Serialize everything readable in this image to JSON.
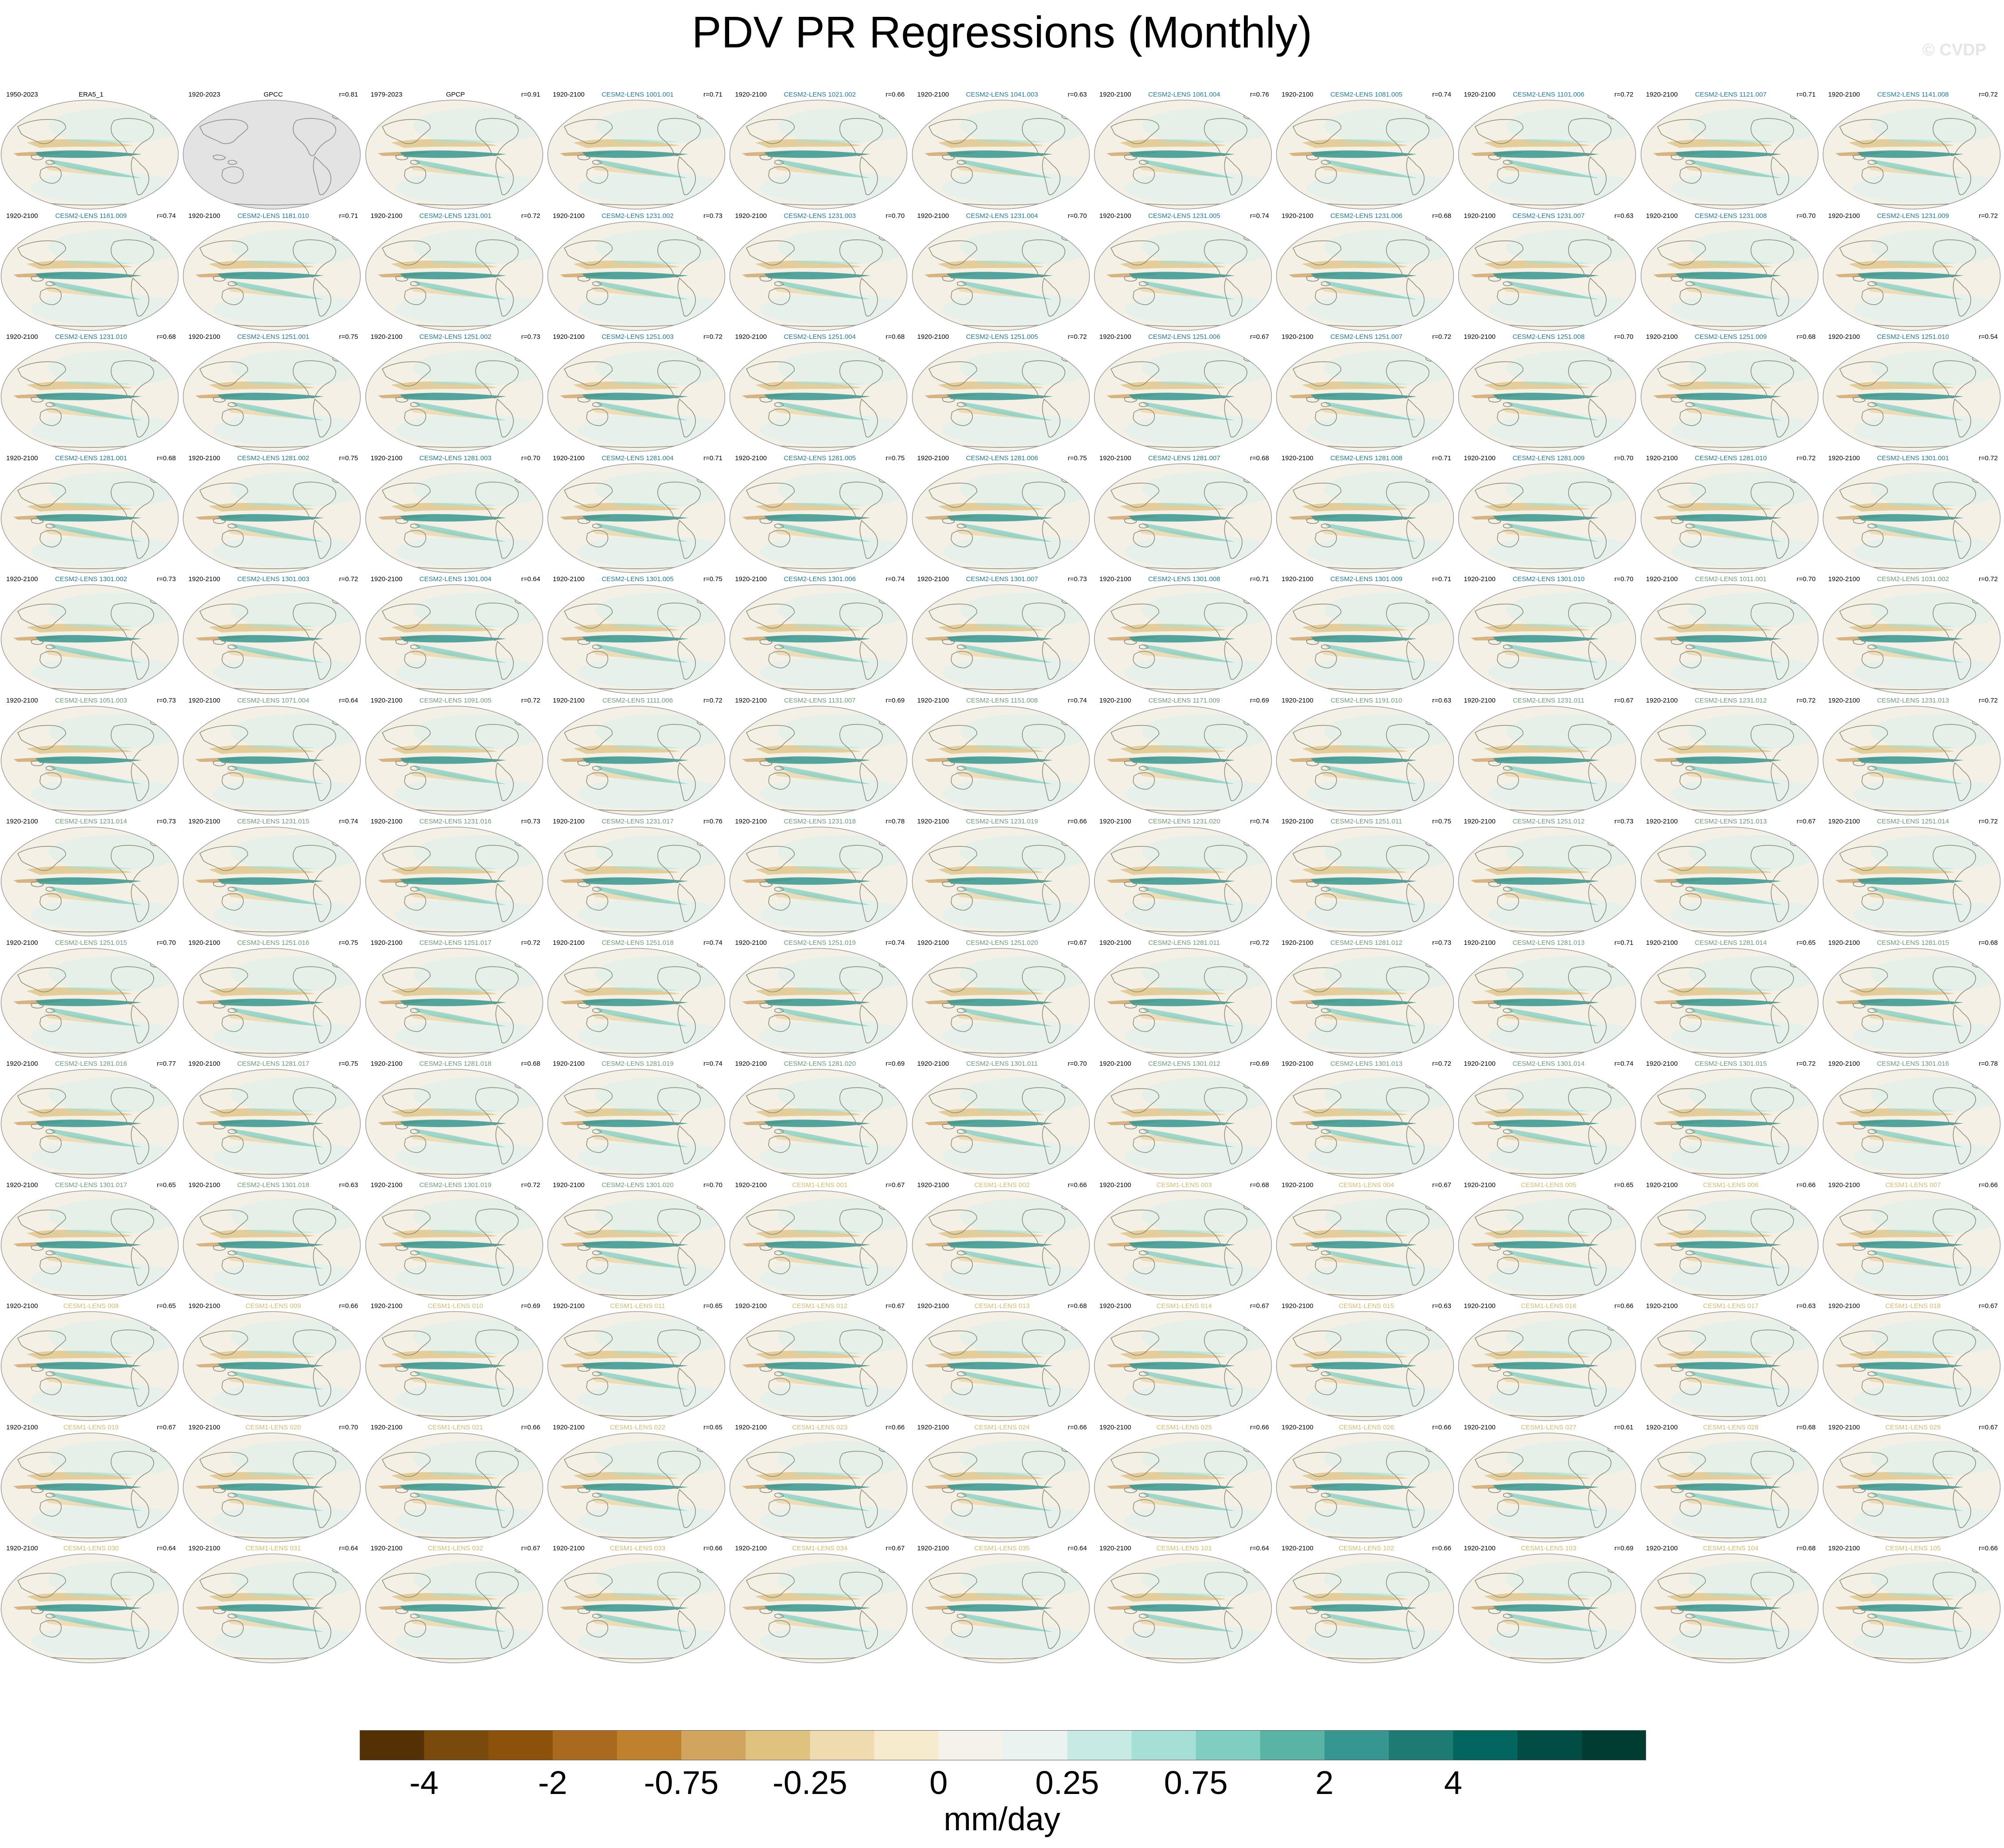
{
  "title": "PDV PR Regressions (Monthly)",
  "watermark": "© CVDP",
  "colors": {
    "cesm2_a": "#1f7a99",
    "cesm2_b": "#6b9a76",
    "cesm1": "#d7b96a",
    "obs": "#000000"
  },
  "palette": [
    "#543005",
    "#7a4a0c",
    "#8c510a",
    "#a9691f",
    "#bf812d",
    "#d2a55e",
    "#dfc27d",
    "#eedcb0",
    "#f6ebcd",
    "#f5f2ec",
    "#ebf3f1",
    "#c7eae5",
    "#a6dfd5",
    "#80cdc1",
    "#5ab4a6",
    "#35978f",
    "#1d7b73",
    "#01665e",
    "#014d45",
    "#003c30"
  ],
  "colorbar": {
    "ticks": [
      "-4",
      "-2",
      "-0.75",
      "-0.25",
      "0",
      "0.25",
      "0.75",
      "2",
      "4"
    ],
    "units": "mm/day"
  },
  "panels": [
    {
      "name": "ERA5_1",
      "years": "1950-2023",
      "r": "",
      "group": "obs"
    },
    {
      "name": "GPCC",
      "years": "1920-2023",
      "r": "r=0.81",
      "group": "obs",
      "missing": true
    },
    {
      "name": "GPCP",
      "years": "1979-2023",
      "r": "r=0.91",
      "group": "obs"
    },
    {
      "name": "CESM2-LENS 1001.001",
      "years": "1920-2100",
      "r": "r=0.71",
      "group": "cesm2_a"
    },
    {
      "name": "CESM2-LENS 1021.002",
      "years": "1920-2100",
      "r": "r=0.66",
      "group": "cesm2_a"
    },
    {
      "name": "CESM2-LENS 1041.003",
      "years": "1920-2100",
      "r": "r=0.63",
      "group": "cesm2_a"
    },
    {
      "name": "CESM2-LENS 1061.004",
      "years": "1920-2100",
      "r": "r=0.76",
      "group": "cesm2_a"
    },
    {
      "name": "CESM2-LENS 1081.005",
      "years": "1920-2100",
      "r": "r=0.74",
      "group": "cesm2_a"
    },
    {
      "name": "CESM2-LENS 1101.006",
      "years": "1920-2100",
      "r": "r=0.72",
      "group": "cesm2_a"
    },
    {
      "name": "CESM2-LENS 1121.007",
      "years": "1920-2100",
      "r": "r=0.71",
      "group": "cesm2_a"
    },
    {
      "name": "CESM2-LENS 1141.008",
      "years": "1920-2100",
      "r": "r=0.72",
      "group": "cesm2_a"
    },
    {
      "name": "CESM2-LENS 1161.009",
      "years": "1920-2100",
      "r": "r=0.74",
      "group": "cesm2_a"
    },
    {
      "name": "CESM2-LENS 1181.010",
      "years": "1920-2100",
      "r": "r=0.71",
      "group": "cesm2_a"
    },
    {
      "name": "CESM2-LENS 1231.001",
      "years": "1920-2100",
      "r": "r=0.72",
      "group": "cesm2_a"
    },
    {
      "name": "CESM2-LENS 1231.002",
      "years": "1920-2100",
      "r": "r=0.73",
      "group": "cesm2_a"
    },
    {
      "name": "CESM2-LENS 1231.003",
      "years": "1920-2100",
      "r": "r=0.70",
      "group": "cesm2_a"
    },
    {
      "name": "CESM2-LENS 1231.004",
      "years": "1920-2100",
      "r": "r=0.70",
      "group": "cesm2_a"
    },
    {
      "name": "CESM2-LENS 1231.005",
      "years": "1920-2100",
      "r": "r=0.74",
      "group": "cesm2_a"
    },
    {
      "name": "CESM2-LENS 1231.006",
      "years": "1920-2100",
      "r": "r=0.68",
      "group": "cesm2_a"
    },
    {
      "name": "CESM2-LENS 1231.007",
      "years": "1920-2100",
      "r": "r=0.63",
      "group": "cesm2_a"
    },
    {
      "name": "CESM2-LENS 1231.008",
      "years": "1920-2100",
      "r": "r=0.70",
      "group": "cesm2_a"
    },
    {
      "name": "CESM2-LENS 1231.009",
      "years": "1920-2100",
      "r": "r=0.72",
      "group": "cesm2_a"
    },
    {
      "name": "CESM2-LENS 1231.010",
      "years": "1920-2100",
      "r": "r=0.68",
      "group": "cesm2_a"
    },
    {
      "name": "CESM2-LENS 1251.001",
      "years": "1920-2100",
      "r": "r=0.75",
      "group": "cesm2_a"
    },
    {
      "name": "CESM2-LENS 1251.002",
      "years": "1920-2100",
      "r": "r=0.73",
      "group": "cesm2_a"
    },
    {
      "name": "CESM2-LENS 1251.003",
      "years": "1920-2100",
      "r": "r=0.72",
      "group": "cesm2_a"
    },
    {
      "name": "CESM2-LENS 1251.004",
      "years": "1920-2100",
      "r": "r=0.68",
      "group": "cesm2_a"
    },
    {
      "name": "CESM2-LENS 1251.005",
      "years": "1920-2100",
      "r": "r=0.72",
      "group": "cesm2_a"
    },
    {
      "name": "CESM2-LENS 1251.006",
      "years": "1920-2100",
      "r": "r=0.67",
      "group": "cesm2_a"
    },
    {
      "name": "CESM2-LENS 1251.007",
      "years": "1920-2100",
      "r": "r=0.72",
      "group": "cesm2_a"
    },
    {
      "name": "CESM2-LENS 1251.008",
      "years": "1920-2100",
      "r": "r=0.70",
      "group": "cesm2_a"
    },
    {
      "name": "CESM2-LENS 1251.009",
      "years": "1920-2100",
      "r": "r=0.68",
      "group": "cesm2_a"
    },
    {
      "name": "CESM2-LENS 1251.010",
      "years": "1920-2100",
      "r": "r=0.54",
      "group": "cesm2_a"
    },
    {
      "name": "CESM2-LENS 1281.001",
      "years": "1920-2100",
      "r": "r=0.68",
      "group": "cesm2_a"
    },
    {
      "name": "CESM2-LENS 1281.002",
      "years": "1920-2100",
      "r": "r=0.75",
      "group": "cesm2_a"
    },
    {
      "name": "CESM2-LENS 1281.003",
      "years": "1920-2100",
      "r": "r=0.70",
      "group": "cesm2_a"
    },
    {
      "name": "CESM2-LENS 1281.004",
      "years": "1920-2100",
      "r": "r=0.71",
      "group": "cesm2_a"
    },
    {
      "name": "CESM2-LENS 1281.005",
      "years": "1920-2100",
      "r": "r=0.75",
      "group": "cesm2_a"
    },
    {
      "name": "CESM2-LENS 1281.006",
      "years": "1920-2100",
      "r": "r=0.75",
      "group": "cesm2_a"
    },
    {
      "name": "CESM2-LENS 1281.007",
      "years": "1920-2100",
      "r": "r=0.68",
      "group": "cesm2_a"
    },
    {
      "name": "CESM2-LENS 1281.008",
      "years": "1920-2100",
      "r": "r=0.71",
      "group": "cesm2_a"
    },
    {
      "name": "CESM2-LENS 1281.009",
      "years": "1920-2100",
      "r": "r=0.70",
      "group": "cesm2_a"
    },
    {
      "name": "CESM2-LENS 1281.010",
      "years": "1920-2100",
      "r": "r=0.72",
      "group": "cesm2_a"
    },
    {
      "name": "CESM2-LENS 1301.001",
      "years": "1920-2100",
      "r": "r=0.72",
      "group": "cesm2_a"
    },
    {
      "name": "CESM2-LENS 1301.002",
      "years": "1920-2100",
      "r": "r=0.73",
      "group": "cesm2_a"
    },
    {
      "name": "CESM2-LENS 1301.003",
      "years": "1920-2100",
      "r": "r=0.72",
      "group": "cesm2_a"
    },
    {
      "name": "CESM2-LENS 1301.004",
      "years": "1920-2100",
      "r": "r=0.64",
      "group": "cesm2_a"
    },
    {
      "name": "CESM2-LENS 1301.005",
      "years": "1920-2100",
      "r": "r=0.75",
      "group": "cesm2_a"
    },
    {
      "name": "CESM2-LENS 1301.006",
      "years": "1920-2100",
      "r": "r=0.74",
      "group": "cesm2_a"
    },
    {
      "name": "CESM2-LENS 1301.007",
      "years": "1920-2100",
      "r": "r=0.73",
      "group": "cesm2_a"
    },
    {
      "name": "CESM2-LENS 1301.008",
      "years": "1920-2100",
      "r": "r=0.71",
      "group": "cesm2_a"
    },
    {
      "name": "CESM2-LENS 1301.009",
      "years": "1920-2100",
      "r": "r=0.71",
      "group": "cesm2_a"
    },
    {
      "name": "CESM2-LENS 1301.010",
      "years": "1920-2100",
      "r": "r=0.70",
      "group": "cesm2_a"
    },
    {
      "name": "CESM2-LENS 1011.001",
      "years": "1920-2100",
      "r": "r=0.70",
      "group": "cesm2_b"
    },
    {
      "name": "CESM2-LENS 1031.002",
      "years": "1920-2100",
      "r": "r=0.72",
      "group": "cesm2_b"
    },
    {
      "name": "CESM2-LENS 1051.003",
      "years": "1920-2100",
      "r": "r=0.73",
      "group": "cesm2_b"
    },
    {
      "name": "CESM2-LENS 1071.004",
      "years": "1920-2100",
      "r": "r=0.64",
      "group": "cesm2_b"
    },
    {
      "name": "CESM2-LENS 1091.005",
      "years": "1920-2100",
      "r": "r=0.72",
      "group": "cesm2_b"
    },
    {
      "name": "CESM2-LENS 1111.006",
      "years": "1920-2100",
      "r": "r=0.72",
      "group": "cesm2_b"
    },
    {
      "name": "CESM2-LENS 1131.007",
      "years": "1920-2100",
      "r": "r=0.69",
      "group": "cesm2_b"
    },
    {
      "name": "CESM2-LENS 1151.008",
      "years": "1920-2100",
      "r": "r=0.74",
      "group": "cesm2_b"
    },
    {
      "name": "CESM2-LENS 1171.009",
      "years": "1920-2100",
      "r": "r=0.69",
      "group": "cesm2_b"
    },
    {
      "name": "CESM2-LENS 1191.010",
      "years": "1920-2100",
      "r": "r=0.63",
      "group": "cesm2_b"
    },
    {
      "name": "CESM2-LENS 1231.011",
      "years": "1920-2100",
      "r": "r=0.67",
      "group": "cesm2_b"
    },
    {
      "name": "CESM2-LENS 1231.012",
      "years": "1920-2100",
      "r": "r=0.72",
      "group": "cesm2_b"
    },
    {
      "name": "CESM2-LENS 1231.013",
      "years": "1920-2100",
      "r": "r=0.72",
      "group": "cesm2_b"
    },
    {
      "name": "CESM2-LENS 1231.014",
      "years": "1920-2100",
      "r": "r=0.73",
      "group": "cesm2_b"
    },
    {
      "name": "CESM2-LENS 1231.015",
      "years": "1920-2100",
      "r": "r=0.74",
      "group": "cesm2_b"
    },
    {
      "name": "CESM2-LENS 1231.016",
      "years": "1920-2100",
      "r": "r=0.73",
      "group": "cesm2_b"
    },
    {
      "name": "CESM2-LENS 1231.017",
      "years": "1920-2100",
      "r": "r=0.76",
      "group": "cesm2_b"
    },
    {
      "name": "CESM2-LENS 1231.018",
      "years": "1920-2100",
      "r": "r=0.78",
      "group": "cesm2_b"
    },
    {
      "name": "CESM2-LENS 1231.019",
      "years": "1920-2100",
      "r": "r=0.66",
      "group": "cesm2_b"
    },
    {
      "name": "CESM2-LENS 1231.020",
      "years": "1920-2100",
      "r": "r=0.74",
      "group": "cesm2_b"
    },
    {
      "name": "CESM2-LENS 1251.011",
      "years": "1920-2100",
      "r": "r=0.75",
      "group": "cesm2_b"
    },
    {
      "name": "CESM2-LENS 1251.012",
      "years": "1920-2100",
      "r": "r=0.73",
      "group": "cesm2_b"
    },
    {
      "name": "CESM2-LENS 1251.013",
      "years": "1920-2100",
      "r": "r=0.67",
      "group": "cesm2_b"
    },
    {
      "name": "CESM2-LENS 1251.014",
      "years": "1920-2100",
      "r": "r=0.72",
      "group": "cesm2_b"
    },
    {
      "name": "CESM2-LENS 1251.015",
      "years": "1920-2100",
      "r": "r=0.70",
      "group": "cesm2_b"
    },
    {
      "name": "CESM2-LENS 1251.016",
      "years": "1920-2100",
      "r": "r=0.75",
      "group": "cesm2_b"
    },
    {
      "name": "CESM2-LENS 1251.017",
      "years": "1920-2100",
      "r": "r=0.72",
      "group": "cesm2_b"
    },
    {
      "name": "CESM2-LENS 1251.018",
      "years": "1920-2100",
      "r": "r=0.74",
      "group": "cesm2_b"
    },
    {
      "name": "CESM2-LENS 1251.019",
      "years": "1920-2100",
      "r": "r=0.74",
      "group": "cesm2_b"
    },
    {
      "name": "CESM2-LENS 1251.020",
      "years": "1920-2100",
      "r": "r=0.67",
      "group": "cesm2_b"
    },
    {
      "name": "CESM2-LENS 1281.011",
      "years": "1920-2100",
      "r": "r=0.72",
      "group": "cesm2_b"
    },
    {
      "name": "CESM2-LENS 1281.012",
      "years": "1920-2100",
      "r": "r=0.73",
      "group": "cesm2_b"
    },
    {
      "name": "CESM2-LENS 1281.013",
      "years": "1920-2100",
      "r": "r=0.71",
      "group": "cesm2_b"
    },
    {
      "name": "CESM2-LENS 1281.014",
      "years": "1920-2100",
      "r": "r=0.65",
      "group": "cesm2_b"
    },
    {
      "name": "CESM2-LENS 1281.015",
      "years": "1920-2100",
      "r": "r=0.68",
      "group": "cesm2_b"
    },
    {
      "name": "CESM2-LENS 1281.016",
      "years": "1920-2100",
      "r": "r=0.77",
      "group": "cesm2_b"
    },
    {
      "name": "CESM2-LENS 1281.017",
      "years": "1920-2100",
      "r": "r=0.75",
      "group": "cesm2_b"
    },
    {
      "name": "CESM2-LENS 1281.018",
      "years": "1920-2100",
      "r": "r=0.68",
      "group": "cesm2_b"
    },
    {
      "name": "CESM2-LENS 1281.019",
      "years": "1920-2100",
      "r": "r=0.74",
      "group": "cesm2_b"
    },
    {
      "name": "CESM2-LENS 1281.020",
      "years": "1920-2100",
      "r": "r=0.69",
      "group": "cesm2_b"
    },
    {
      "name": "CESM2-LENS 1301.011",
      "years": "1920-2100",
      "r": "r=0.70",
      "group": "cesm2_b"
    },
    {
      "name": "CESM2-LENS 1301.012",
      "years": "1920-2100",
      "r": "r=0.69",
      "group": "cesm2_b"
    },
    {
      "name": "CESM2-LENS 1301.013",
      "years": "1920-2100",
      "r": "r=0.72",
      "group": "cesm2_b"
    },
    {
      "name": "CESM2-LENS 1301.014",
      "years": "1920-2100",
      "r": "r=0.74",
      "group": "cesm2_b"
    },
    {
      "name": "CESM2-LENS 1301.015",
      "years": "1920-2100",
      "r": "r=0.72",
      "group": "cesm2_b"
    },
    {
      "name": "CESM2-LENS 1301.016",
      "years": "1920-2100",
      "r": "r=0.78",
      "group": "cesm2_b"
    },
    {
      "name": "CESM2-LENS 1301.017",
      "years": "1920-2100",
      "r": "r=0.65",
      "group": "cesm2_b"
    },
    {
      "name": "CESM2-LENS 1301.018",
      "years": "1920-2100",
      "r": "r=0.63",
      "group": "cesm2_b"
    },
    {
      "name": "CESM2-LENS 1301.019",
      "years": "1920-2100",
      "r": "r=0.72",
      "group": "cesm2_b"
    },
    {
      "name": "CESM2-LENS 1301.020",
      "years": "1920-2100",
      "r": "r=0.70",
      "group": "cesm2_b"
    },
    {
      "name": "CESM1-LENS 001",
      "years": "1920-2100",
      "r": "r=0.67",
      "group": "cesm1"
    },
    {
      "name": "CESM1-LENS 002",
      "years": "1920-2100",
      "r": "r=0.66",
      "group": "cesm1"
    },
    {
      "name": "CESM1-LENS 003",
      "years": "1920-2100",
      "r": "r=0.68",
      "group": "cesm1"
    },
    {
      "name": "CESM1-LENS 004",
      "years": "1920-2100",
      "r": "r=0.67",
      "group": "cesm1"
    },
    {
      "name": "CESM1-LENS 005",
      "years": "1920-2100",
      "r": "r=0.65",
      "group": "cesm1"
    },
    {
      "name": "CESM1-LENS 006",
      "years": "1920-2100",
      "r": "r=0.66",
      "group": "cesm1"
    },
    {
      "name": "CESM1-LENS 007",
      "years": "1920-2100",
      "r": "r=0.66",
      "group": "cesm1"
    },
    {
      "name": "CESM1-LENS 008",
      "years": "1920-2100",
      "r": "r=0.65",
      "group": "cesm1"
    },
    {
      "name": "CESM1-LENS 009",
      "years": "1920-2100",
      "r": "r=0.66",
      "group": "cesm1"
    },
    {
      "name": "CESM1-LENS 010",
      "years": "1920-2100",
      "r": "r=0.69",
      "group": "cesm1"
    },
    {
      "name": "CESM1-LENS 011",
      "years": "1920-2100",
      "r": "r=0.65",
      "group": "cesm1"
    },
    {
      "name": "CESM1-LENS 012",
      "years": "1920-2100",
      "r": "r=0.67",
      "group": "cesm1"
    },
    {
      "name": "CESM1-LENS 013",
      "years": "1920-2100",
      "r": "r=0.68",
      "group": "cesm1"
    },
    {
      "name": "CESM1-LENS 014",
      "years": "1920-2100",
      "r": "r=0.67",
      "group": "cesm1"
    },
    {
      "name": "CESM1-LENS 015",
      "years": "1920-2100",
      "r": "r=0.63",
      "group": "cesm1"
    },
    {
      "name": "CESM1-LENS 016",
      "years": "1920-2100",
      "r": "r=0.66",
      "group": "cesm1"
    },
    {
      "name": "CESM1-LENS 017",
      "years": "1920-2100",
      "r": "r=0.63",
      "group": "cesm1"
    },
    {
      "name": "CESM1-LENS 018",
      "years": "1920-2100",
      "r": "r=0.67",
      "group": "cesm1"
    },
    {
      "name": "CESM1-LENS 019",
      "years": "1920-2100",
      "r": "r=0.67",
      "group": "cesm1"
    },
    {
      "name": "CESM1-LENS 020",
      "years": "1920-2100",
      "r": "r=0.70",
      "group": "cesm1"
    },
    {
      "name": "CESM1-LENS 021",
      "years": "1920-2100",
      "r": "r=0.66",
      "group": "cesm1"
    },
    {
      "name": "CESM1-LENS 022",
      "years": "1920-2100",
      "r": "r=0.65",
      "group": "cesm1"
    },
    {
      "name": "CESM1-LENS 023",
      "years": "1920-2100",
      "r": "r=0.66",
      "group": "cesm1"
    },
    {
      "name": "CESM1-LENS 024",
      "years": "1920-2100",
      "r": "r=0.66",
      "group": "cesm1"
    },
    {
      "name": "CESM1-LENS 025",
      "years": "1920-2100",
      "r": "r=0.66",
      "group": "cesm1"
    },
    {
      "name": "CESM1-LENS 026",
      "years": "1920-2100",
      "r": "r=0.66",
      "group": "cesm1"
    },
    {
      "name": "CESM1-LENS 027",
      "years": "1920-2100",
      "r": "r=0.61",
      "group": "cesm1"
    },
    {
      "name": "CESM1-LENS 028",
      "years": "1920-2100",
      "r": "r=0.68",
      "group": "cesm1"
    },
    {
      "name": "CESM1-LENS 029",
      "years": "1920-2100",
      "r": "r=0.67",
      "group": "cesm1"
    },
    {
      "name": "CESM1-LENS 030",
      "years": "1920-2100",
      "r": "r=0.64",
      "group": "cesm1"
    },
    {
      "name": "CESM1-LENS 031",
      "years": "1920-2100",
      "r": "r=0.64",
      "group": "cesm1"
    },
    {
      "name": "CESM1-LENS 032",
      "years": "1920-2100",
      "r": "r=0.67",
      "group": "cesm1"
    },
    {
      "name": "CESM1-LENS 033",
      "years": "1920-2100",
      "r": "r=0.66",
      "group": "cesm1"
    },
    {
      "name": "CESM1-LENS 034",
      "years": "1920-2100",
      "r": "r=0.67",
      "group": "cesm1"
    },
    {
      "name": "CESM1-LENS 035",
      "years": "1920-2100",
      "r": "r=0.64",
      "group": "cesm1"
    },
    {
      "name": "CESM1-LENS 101",
      "years": "1920-2100",
      "r": "r=0.64",
      "group": "cesm1"
    },
    {
      "name": "CESM1-LENS 102",
      "years": "1920-2100",
      "r": "r=0.66",
      "group": "cesm1"
    },
    {
      "name": "CESM1-LENS 103",
      "years": "1920-2100",
      "r": "r=0.69",
      "group": "cesm1"
    },
    {
      "name": "CESM1-LENS 104",
      "years": "1920-2100",
      "r": "r=0.68",
      "group": "cesm1"
    },
    {
      "name": "CESM1-LENS 105",
      "years": "1920-2100",
      "r": "r=0.66",
      "group": "cesm1"
    }
  ]
}
